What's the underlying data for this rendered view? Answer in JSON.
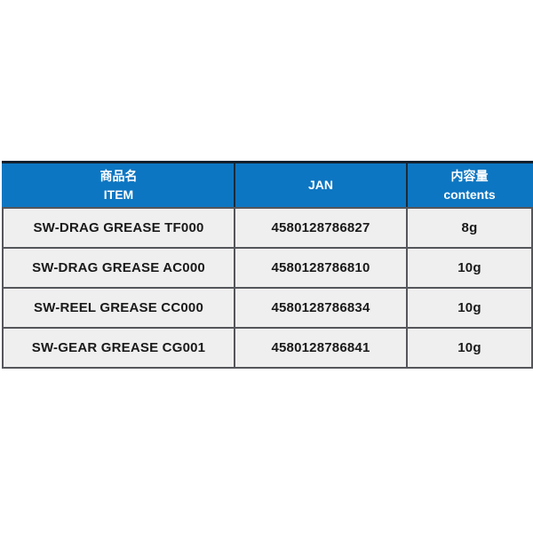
{
  "table": {
    "columns": [
      {
        "line1": "商品名",
        "line2": "ITEM"
      },
      {
        "line1": "JAN",
        "line2": ""
      },
      {
        "line1": "内容量",
        "line2": "contents"
      }
    ],
    "rows": [
      {
        "item": "SW-DRAG GREASE TF000",
        "jan": "4580128786827",
        "contents": "8g"
      },
      {
        "item": "SW-DRAG GREASE AC000",
        "jan": "4580128786810",
        "contents": "10g"
      },
      {
        "item": "SW-REEL GREASE CC000",
        "jan": "4580128786834",
        "contents": "10g"
      },
      {
        "item": "SW-GEAR GREASE CG001",
        "jan": "4580128786841",
        "contents": "10g"
      }
    ]
  },
  "colors": {
    "header_bg": "#0d76c2",
    "header_text": "#ffffff",
    "top_border": "#13202e",
    "border": "#54565a",
    "row_bg": "#f0efef",
    "body_text": "#1a1a1a"
  }
}
